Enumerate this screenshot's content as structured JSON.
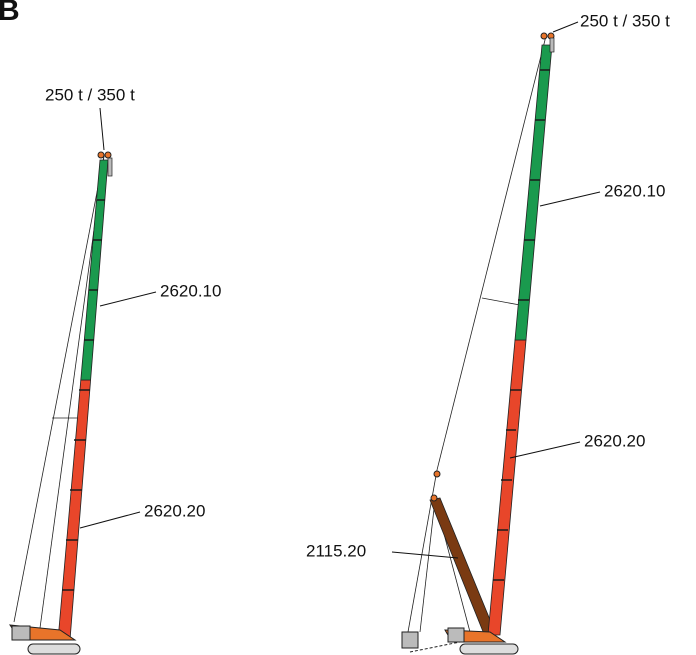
{
  "panel_label": "B",
  "left_crane": {
    "top_label": "250 t / 350 t",
    "upper_section": "2620.10",
    "lower_section": "2620.20"
  },
  "right_crane": {
    "top_label": "250 t / 350 t",
    "upper_section": "2620.10",
    "lower_section": "2620.20",
    "luffing_section": "2115.20"
  }
}
